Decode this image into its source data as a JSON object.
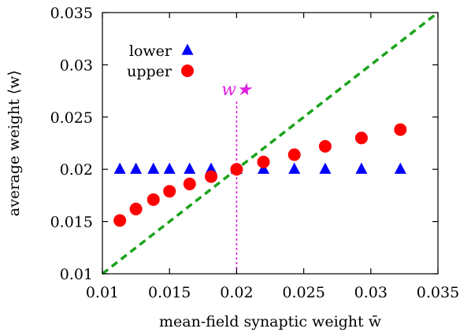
{
  "chart_data": {
    "type": "scatter",
    "xlabel": "mean-field synaptic weight w̄",
    "ylabel": "average weight ⟨w⟩",
    "xlim": [
      0.01,
      0.035
    ],
    "ylim": [
      0.01,
      0.035
    ],
    "x_ticks": [
      "0.01",
      "0.015",
      "0.02",
      "0.025",
      "0.03",
      "0.035"
    ],
    "y_ticks": [
      "0.01",
      "0.015",
      "0.02",
      "0.025",
      "0.03",
      "0.035"
    ],
    "legend_position": "top-left",
    "series": [
      {
        "name": "lower",
        "marker": "triangle",
        "color": "#0000ff",
        "x": [
          0.0113,
          0.0125,
          0.0138,
          0.015,
          0.0165,
          0.0181,
          0.02,
          0.022,
          0.0243,
          0.0266,
          0.0293,
          0.0322
        ],
        "y": [
          0.02,
          0.02,
          0.02,
          0.02,
          0.02,
          0.02,
          0.02,
          0.02,
          0.02,
          0.02,
          0.02,
          0.02
        ]
      },
      {
        "name": "upper",
        "marker": "circle",
        "color": "#ff0000",
        "x": [
          0.0113,
          0.0125,
          0.0138,
          0.015,
          0.0165,
          0.0181,
          0.02,
          0.022,
          0.0243,
          0.0266,
          0.0293,
          0.0322
        ],
        "y": [
          0.0151,
          0.0162,
          0.0171,
          0.0179,
          0.0186,
          0.0193,
          0.02,
          0.0207,
          0.0214,
          0.0222,
          0.023,
          0.0238
        ]
      }
    ],
    "diagonal": {
      "color": "#1aa31a",
      "style": "dashed"
    },
    "vertical_marker": {
      "x": 0.02,
      "label": "w★",
      "color": "#e020e0",
      "style": "dotted"
    }
  }
}
